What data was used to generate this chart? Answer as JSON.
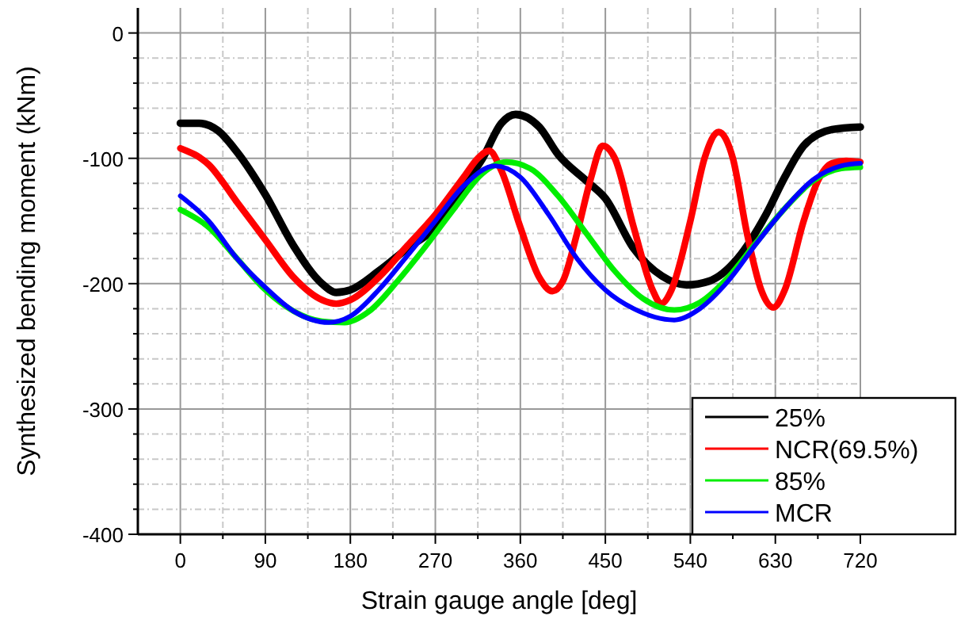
{
  "chart_data": {
    "type": "line",
    "xlabel": "Strain gauge angle [deg]",
    "ylabel": "Synthesized bending moment (kNm)",
    "xlim": [
      -45,
      720
    ],
    "ylim": [
      -400,
      20
    ],
    "xticks": [
      0,
      {
        "value": 45,
        "label": null
      },
      90,
      {
        "value": 135,
        "label": null
      },
      180,
      {
        "value": 225,
        "label": null
      },
      270,
      {
        "value": 315,
        "label": null
      },
      360,
      {
        "value": 405,
        "label": null
      },
      450,
      {
        "value": 495,
        "label": null
      },
      540,
      {
        "value": 585,
        "label": null
      },
      630,
      {
        "value": 675,
        "label": null
      },
      720
    ],
    "yticks": [
      -400,
      {
        "value": -380,
        "label": null
      },
      {
        "value": -360,
        "label": null
      },
      {
        "value": -340,
        "label": null
      },
      {
        "value": -320,
        "label": null
      },
      -300,
      {
        "value": -280,
        "label": null
      },
      {
        "value": -260,
        "label": null
      },
      {
        "value": -240,
        "label": null
      },
      {
        "value": -220,
        "label": null
      },
      -200,
      {
        "value": -180,
        "label": null
      },
      {
        "value": -160,
        "label": null
      },
      {
        "value": -140,
        "label": null
      },
      {
        "value": -120,
        "label": null
      },
      -100,
      {
        "value": -80,
        "label": null
      },
      {
        "value": -60,
        "label": null
      },
      {
        "value": -40,
        "label": null
      },
      {
        "value": -20,
        "label": null
      },
      0
    ],
    "grid": true,
    "legend": "bottom right",
    "line_style": "solid",
    "series": [
      {
        "name": "25%",
        "color": "#000000",
        "x": [
          0,
          20,
          40,
          60,
          90,
          120,
          150,
          165,
          180,
          210,
          240,
          270,
          300,
          320,
          340,
          355,
          380,
          400,
          430,
          450,
          480,
          510,
          536,
          560,
          590,
          620,
          640,
          660,
          690,
          720
        ],
        "values": [
          -72,
          -72,
          -78,
          -95,
          -129,
          -170,
          -200,
          -207,
          -205,
          -190,
          -172,
          -155,
          -122,
          -100,
          -72,
          -65,
          -75,
          -97,
          -118,
          -132,
          -172,
          -194,
          -201,
          -198,
          -180,
          -145,
          -115,
          -90,
          -77,
          -75
        ]
      },
      {
        "name": "NCR(69.5%)",
        "color": "#ff0000",
        "x": [
          0,
          30,
          60,
          90,
          120,
          150,
          165,
          180,
          210,
          240,
          270,
          300,
          315,
          327,
          340,
          360,
          380,
          394,
          405,
          420,
          435,
          447,
          460,
          480,
          500,
          509,
          520,
          540,
          555,
          570,
          585,
          600,
          615,
          628,
          640,
          660,
          675,
          690,
          705,
          720
        ],
        "values": [
          -92,
          -105,
          -135,
          -165,
          -195,
          -213,
          -216,
          -213,
          -195,
          -170,
          -145,
          -115,
          -100,
          -94,
          -110,
          -155,
          -195,
          -206,
          -198,
          -160,
          -115,
          -90,
          -100,
          -155,
          -205,
          -216,
          -205,
          -150,
          -100,
          -79,
          -100,
          -160,
          -205,
          -219,
          -205,
          -150,
          -118,
          -104,
          -102,
          -103
        ]
      },
      {
        "name": "85%",
        "color": "#00ee00",
        "x": [
          0,
          30,
          60,
          90,
          120,
          150,
          174,
          200,
          230,
          260,
          290,
          320,
          345,
          370,
          400,
          430,
          460,
          490,
          523,
          550,
          580,
          610,
          640,
          670,
          700,
          720
        ],
        "values": [
          -141,
          -155,
          -180,
          -205,
          -222,
          -230,
          -231,
          -222,
          -198,
          -170,
          -140,
          -112,
          -103,
          -108,
          -130,
          -160,
          -190,
          -212,
          -221,
          -215,
          -195,
          -167,
          -140,
          -118,
          -108,
          -107
        ]
      },
      {
        "name": "MCR",
        "color": "#0000ff",
        "x": [
          0,
          30,
          60,
          90,
          120,
          157,
          180,
          210,
          240,
          270,
          300,
          333,
          360,
          390,
          420,
          450,
          480,
          523,
          550,
          580,
          610,
          640,
          670,
          700,
          720
        ],
        "values": [
          -130,
          -150,
          -180,
          -203,
          -222,
          -231,
          -226,
          -205,
          -178,
          -150,
          -122,
          -106,
          -115,
          -145,
          -180,
          -205,
          -220,
          -229,
          -220,
          -198,
          -168,
          -140,
          -117,
          -106,
          -104
        ]
      }
    ]
  }
}
